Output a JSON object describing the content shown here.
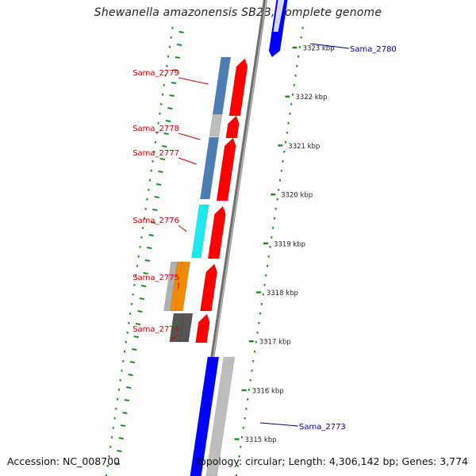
{
  "title": "Shewanella amazonensis SB2B, complete genome",
  "footer": {
    "accession": "Accession: NC_008700",
    "summary": "Topology: circular; Length: 4,306,142 bp; Genes: 3,774"
  },
  "map": {
    "axis_color": "#888888",
    "tick_color": "#1f8a1f",
    "ticks": [
      "3323 kbp",
      "3322 kbp",
      "3321 kbp",
      "3320 kbp",
      "3319 kbp",
      "3318 kbp",
      "3317 kbp",
      "3316 kbp",
      "3315 kbp"
    ]
  },
  "genes_left": [
    {
      "name": "Sama_2779",
      "color": "#cc0000",
      "feature_color": "#4d7fb5",
      "orf_color": "#ff0000"
    },
    {
      "name": "Sama_2778",
      "color": "#cc0000",
      "feature_color": "#bdbdbd",
      "orf_color": "#ff0000"
    },
    {
      "name": "Sama_2777",
      "color": "#cc0000",
      "feature_color": "#4d7fb5",
      "orf_color": "#ff0000"
    },
    {
      "name": "Sama_2776",
      "color": "#cc0000",
      "feature_color": "#1ee8f0",
      "orf_color": "#ff0000"
    },
    {
      "name": "Sama_2775",
      "color": "#cc0000",
      "feature_color": "#f08a00",
      "orf_color": "#ff0000"
    },
    {
      "name": "Sama_2774",
      "color": "#cc0000",
      "feature_color": "#555555",
      "orf_color": "#ff0000"
    }
  ],
  "genes_right": [
    {
      "name": "Sama_2780",
      "color": "#00008b",
      "orf_color": "#0000ff"
    },
    {
      "name": "Sama_2773",
      "color": "#00008b",
      "orf_color": "#0000ff"
    }
  ]
}
